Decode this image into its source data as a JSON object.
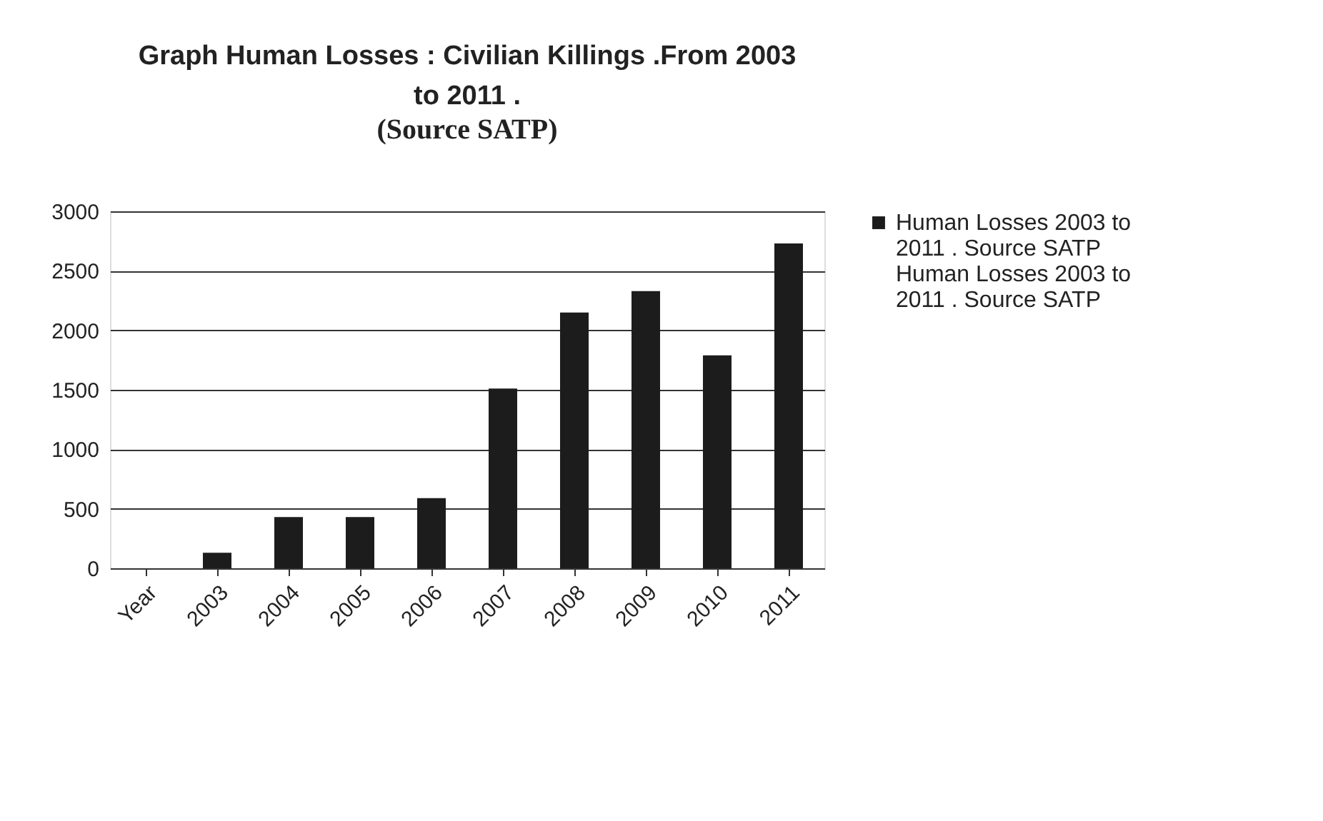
{
  "chart_data": {
    "type": "bar",
    "title": "Graph  Human Losses : Civilian Killings .From 2003 to 2011 .",
    "subtitle": "(Source SATP)",
    "categories": [
      "Year",
      "2003",
      "2004",
      "2005",
      "2006",
      "2007",
      "2008",
      "2009",
      "2010",
      "2011"
    ],
    "series": [
      {
        "name": "Human Losses 2003 to 2011 . Source SATP Human Losses 2003 to 2011 . Source SATP",
        "color": "#1c1c1c",
        "values": [
          null,
          130,
          430,
          430,
          590,
          1510,
          2150,
          2330,
          1790,
          2730
        ]
      }
    ],
    "ylim": [
      0,
      3000
    ],
    "yticks": [
      0,
      500,
      1000,
      1500,
      2000,
      2500,
      3000
    ],
    "grid": "y",
    "legend": "right"
  }
}
